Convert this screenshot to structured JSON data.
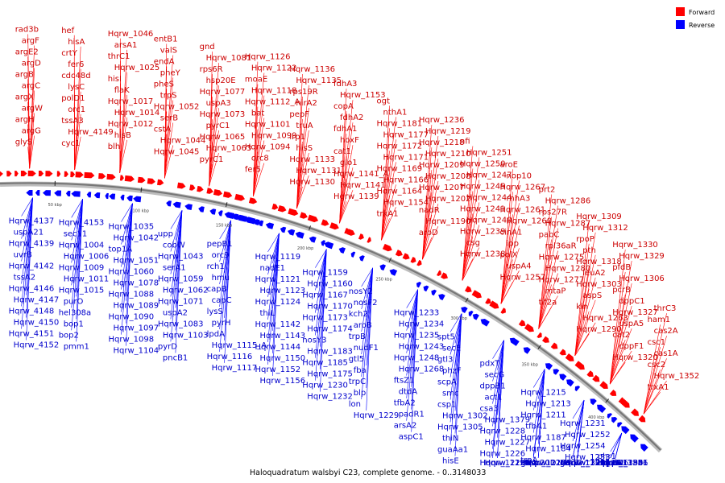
{
  "title": "Haloquadratum walsbyi C23, complete genome. - 0..3148033",
  "legend": [
    {
      "label": "Forward",
      "color": "#ff0000"
    },
    {
      "label": "Reverse",
      "color": "#0000ff"
    }
  ],
  "colors": {
    "forward": "#ff0000",
    "reverse": "#0000ff",
    "forward_text": "#cc0000",
    "reverse_text": "#0000cc",
    "backbone": "#888888"
  },
  "ticks": [
    "50 kbp",
    "100 kbp",
    "150 kbp",
    "200 kbp",
    "250 kbp",
    "300 kbp",
    "350 kbp",
    "400 kbp"
  ],
  "forward_labels": [
    "glyS",
    "argG",
    "argH",
    "argW",
    "argX",
    "argC",
    "argB",
    "argD",
    "argE2",
    "argF",
    "rad3b",
    "cyc1",
    "Hqrw_4149",
    "tssA3",
    "orc1",
    "polD1",
    "lysC",
    "cdc48d",
    "fer6",
    "crtY",
    "hisA",
    "hef",
    "blh",
    "hisB",
    "Hqrw_1012",
    "Hqrw_1014",
    "Hqrw_1017",
    "flaK",
    "hisI",
    "Hqrw_1025",
    "thrC1",
    "arsA1",
    "Hqrw_1046",
    "Hqrw_1045",
    "Hqrw_1044",
    "cstA",
    "serB",
    "Hqrw_1052",
    "trpS",
    "pheS",
    "pheY",
    "endA",
    "valS",
    "entB1",
    "pyrC1",
    "Hqrw_1063",
    "Hqrw_1065",
    "pyrC1",
    "Hqrw_1073",
    "uspA3",
    "Hqrw_1077",
    "hsp20E",
    "rps6R",
    "Hqrw_1081",
    "gnd",
    "fer5",
    "orc8",
    "Hqrw_1094",
    "Hqrw_1099",
    "Hqrw_1101",
    "bat",
    "Hqrw_1112_A",
    "Hqrw_1118",
    "moaE",
    "Hqrw_1122",
    "Hqrw_1126",
    "Hqrw_1130",
    "Hqrw_1131",
    "Hqrw_1133",
    "hisS",
    "lrp1",
    "truA",
    "pepF",
    "nirA2",
    "rps19R",
    "Hqrw_1135",
    "Hqrw_1136",
    "Hqrw_1139",
    "Hqrw_1141",
    "Hqrw_1141_A",
    "glo1",
    "cat1",
    "hoxF",
    "fdhA1",
    "fdhA2",
    "copA",
    "Hqrw_1153",
    "fdhA3",
    "trkA1",
    "Hqrw_1154",
    "Hqrw_1164",
    "Hqrw_1166",
    "Hqrw_1169",
    "Hqrw_1171",
    "Hqrw_1172",
    "Hqrw_1177",
    "Hqrw_1181",
    "nthA1",
    "ogt",
    "aroD",
    "Hqrw_1190",
    "nadR",
    "Hqrw_1202",
    "Hqrw_1207",
    "Hqrw_1208",
    "Hqrw_1209",
    "Hqrw_1210",
    "Hqrw_1218",
    "Hqrw_1219",
    "Hqrw_1236",
    "Hqrw_1238",
    "csg",
    "Hqrw_1239",
    "Hqrw_1240",
    "Hqrw_1241",
    "Hqrw_1244",
    "Hqrw_1245",
    "Hqrw_1247",
    "Hqrw_1250",
    "Hqrw_1251",
    "nfi",
    "Hqrw_1257",
    "uspA4",
    "polX",
    "ipp",
    "cinA1",
    "Hqrw_1260",
    "Hqrw_1261",
    "rnhA3",
    "Hqrw_1267",
    "nop10",
    "aroE",
    "tif2a",
    "mtaP",
    "Hqrw_1277",
    "Hqrw_1280",
    "Hqrw_1275",
    "rpl36aR",
    "pabC",
    "Hqrw_1287",
    "rps27R",
    "Hqrw_1286",
    "prt2",
    "Hqrw_1290",
    "Hqrw_1263",
    "kin",
    "aspS",
    "Hqrw_1303",
    "leuA2",
    "Hqrw_1318",
    "pth",
    "rpoP",
    "Hqrw_1312",
    "Hqrw_1309",
    "Hqrw_1320",
    "dppF1",
    "cat2",
    "uspA5",
    "Hqrw_1327",
    "dppC1",
    "pcrB",
    "Hqrw_1306",
    "pfdB",
    "Hqrw_1329",
    "Hqrw_1330",
    "trxA1",
    "Hqrw_1352",
    "csc2",
    "cas1A",
    "csc1",
    "cas2A",
    "ham1",
    "thrC3"
  ],
  "reverse_labels": [
    "Hqrw_4137",
    "uspA21",
    "Hqrw_4139",
    "uvrB",
    "Hqrw_4142",
    "tssA2",
    "Hqrw_4146",
    "Hqrw_4147",
    "Hqrw_4148",
    "Hqrw_4150",
    "Hqrw_4151",
    "Hqrw_4152",
    "Hqrw_4153",
    "sec11",
    "Hqrw_1004",
    "Hqrw_1006",
    "Hqrw_1009",
    "Hqrw_1011",
    "Hqrw_1015",
    "purO",
    "hel308a",
    "bop1",
    "bop2",
    "pmm1",
    "Hqrw_1035",
    "Hqrw_1042",
    "top1A",
    "Hqrw_1051",
    "Hqrw_1060",
    "Hqrw_1078",
    "Hqrw_1088",
    "Hqrw_1089",
    "Hqrw_1090",
    "Hqrw_1097",
    "Hqrw_1098",
    "Hqrw_1104",
    "upp",
    "cobW",
    "Hqrw_1043",
    "serA1",
    "Hqrw_1059",
    "Hqrw_1062",
    "Hqrw_1071",
    "uspA2",
    "Hqrw_1083",
    "Hqrw_1103",
    "pyrD",
    "pncB1",
    "pepB1",
    "orc9",
    "rch1",
    "hmu",
    "capB",
    "capC",
    "lysS",
    "pyrH",
    "lpdA",
    "Hqrw_1115_A",
    "Hqrw_1116",
    "Hqrw_1117",
    "Hqrw_1119",
    "nadE1",
    "Hqrw_1121",
    "Hqrw_1123",
    "Hqrw_1124",
    "thiL",
    "Hqrw_1142",
    "Hqrw_1143",
    "Hqrw_1144",
    "Hqrw_1150",
    "Hqrw_1152",
    "Hqrw_1156",
    "Hqrw_1159",
    "Hqrw_1160",
    "Hqrw_1167",
    "Hqrw_1170",
    "Hqrw_1173",
    "Hqrw_1174",
    "nosY3",
    "Hqrw_1183",
    "Hqrw_1185",
    "Hqrw_1175",
    "Hqrw_1230",
    "Hqrw_1232",
    "nosY2",
    "nosF2",
    "kch2",
    "aroB",
    "trpB",
    "nudF1",
    "gtl5",
    "fba",
    "trpC",
    "blp",
    "lon",
    "Hqrw_1229",
    "Hqrw_1233",
    "Hqrw_1234",
    "Hqrw_1235",
    "Hqrw_1243",
    "Hqrw_1248",
    "Hqrw_1268",
    "ftsZ1",
    "dtdA",
    "tfbA2",
    "padR1",
    "arsA2",
    "aspC1",
    "spt5",
    "secE",
    "gtl3",
    "phzF",
    "scpA",
    "smc",
    "csp1",
    "Hqrw_1302",
    "Hqrw_1305",
    "thiN",
    "guaAa1",
    "hisE",
    "pdxT",
    "secG",
    "dppB1",
    "act1",
    "csa3",
    "Hqrw_1379",
    "Hqrw_1228",
    "Hqrw_1227",
    "Hqrw_1226",
    "Hqrw_1224",
    "Hqrw_1223",
    "Hqrw_1199",
    "Hqrw_1215",
    "Hqrw_1213",
    "Hqrw_1211",
    "tfbA1",
    "Hqrw_1187",
    "Hqrw_1184",
    "trpA",
    "Hqrw_1206",
    "gtl4",
    "hsp20D",
    "Hqrw_1216",
    "Hqrw_1221",
    "Hqrw_1231",
    "Hqrw_1252",
    "Hqrw_1254",
    "Hqrw_1253",
    "Hqrw_1278",
    "Hqrw_1281",
    "gatB",
    "truD",
    "Hqrw_1301",
    "Hqrw_1294",
    "Hqrw_1325",
    "Hqrw_1304",
    "phr1",
    "Hqrw_1331",
    "dppD1",
    "Hqrw_1351",
    "Hqrw_1356",
    "phoU6",
    "Hqrw_1380",
    "Hqrw_1386",
    "Hqrw_1394",
    "dcd1",
    "top1B"
  ]
}
